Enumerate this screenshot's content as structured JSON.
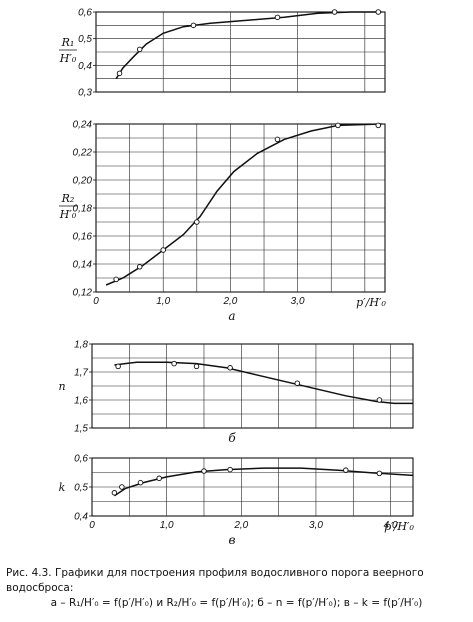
{
  "caption": {
    "line1": "Рис. 4.3. Графики для построения профиля водосливного порога веерного водосброса:",
    "line2": "а – R₁/H′₀ = f(p′/H′₀) и R₂/H′₀ = f(p′/H′₀); б – n = f(p′/H′₀); в – k = f(p′/H′₀)"
  },
  "chart_data": [
    {
      "type": "line",
      "ylabel_num": "R₁",
      "ylabel_den": "H′₀",
      "xlim": [
        0,
        4.3
      ],
      "ylim": [
        0.3,
        0.6
      ],
      "yticks": [
        0.3,
        0.4,
        0.5,
        0.6
      ],
      "ytick_labels": [
        "0,3",
        "0,4",
        "0,5",
        "0,6"
      ],
      "grid": true,
      "points": [
        [
          0.35,
          0.37
        ],
        [
          0.65,
          0.46
        ],
        [
          1.45,
          0.55
        ],
        [
          2.7,
          0.58
        ],
        [
          3.55,
          0.6
        ],
        [
          4.2,
          0.6
        ]
      ],
      "curve": [
        [
          0.3,
          0.35
        ],
        [
          0.4,
          0.39
        ],
        [
          0.55,
          0.43
        ],
        [
          0.75,
          0.48
        ],
        [
          1.0,
          0.52
        ],
        [
          1.3,
          0.545
        ],
        [
          1.7,
          0.558
        ],
        [
          2.3,
          0.57
        ],
        [
          2.8,
          0.58
        ],
        [
          3.3,
          0.595
        ],
        [
          3.8,
          0.6
        ],
        [
          4.25,
          0.6
        ]
      ]
    },
    {
      "type": "line",
      "ylabel_num": "R₂",
      "ylabel_den": "H′₀",
      "xlabel": "p′/H′₀",
      "sublabel": "а",
      "xlim": [
        0,
        4.3
      ],
      "ylim": [
        0.12,
        0.24
      ],
      "yticks": [
        0.12,
        0.14,
        0.16,
        0.18,
        0.2,
        0.22,
        0.24
      ],
      "ytick_labels": [
        "0,12",
        "0,14",
        "0,16",
        "0,18",
        "0,20",
        "0,22",
        "0,24"
      ],
      "xticks": [
        0,
        1,
        2,
        3
      ],
      "xtick_labels": [
        "0",
        "1,0",
        "2,0",
        "3,0"
      ],
      "grid": true,
      "points": [
        [
          0.3,
          0.129
        ],
        [
          0.65,
          0.138
        ],
        [
          1.0,
          0.15
        ],
        [
          1.5,
          0.17
        ],
        [
          2.7,
          0.229
        ],
        [
          3.6,
          0.239
        ],
        [
          4.2,
          0.239
        ]
      ],
      "curve": [
        [
          0.15,
          0.125
        ],
        [
          0.4,
          0.13
        ],
        [
          0.7,
          0.139
        ],
        [
          1.0,
          0.15
        ],
        [
          1.3,
          0.161
        ],
        [
          1.55,
          0.174
        ],
        [
          1.8,
          0.192
        ],
        [
          2.05,
          0.206
        ],
        [
          2.4,
          0.219
        ],
        [
          2.8,
          0.229
        ],
        [
          3.2,
          0.235
        ],
        [
          3.6,
          0.239
        ],
        [
          4.25,
          0.24
        ]
      ]
    },
    {
      "type": "line",
      "ylabel": "n",
      "sublabel": "б",
      "xlim": [
        0,
        4.3
      ],
      "ylim": [
        1.5,
        1.8
      ],
      "yticks": [
        1.5,
        1.6,
        1.7,
        1.8
      ],
      "ytick_labels": [
        "1,5",
        "1,6",
        "1,7",
        "1,8"
      ],
      "grid": true,
      "points": [
        [
          0.35,
          1.72
        ],
        [
          1.1,
          1.73
        ],
        [
          1.4,
          1.72
        ],
        [
          1.85,
          1.715
        ],
        [
          2.75,
          1.66
        ],
        [
          3.85,
          1.6
        ]
      ],
      "curve": [
        [
          0.3,
          1.725
        ],
        [
          0.6,
          1.735
        ],
        [
          1.0,
          1.735
        ],
        [
          1.4,
          1.73
        ],
        [
          1.8,
          1.715
        ],
        [
          2.2,
          1.69
        ],
        [
          2.6,
          1.665
        ],
        [
          3.0,
          1.64
        ],
        [
          3.4,
          1.615
        ],
        [
          3.8,
          1.595
        ],
        [
          4.05,
          1.588
        ],
        [
          4.3,
          1.588
        ]
      ]
    },
    {
      "type": "line",
      "ylabel": "k",
      "xlabel": "p′/H′₀",
      "sublabel": "в",
      "xlim": [
        0,
        4.3
      ],
      "ylim": [
        0.4,
        0.6
      ],
      "yticks": [
        0.4,
        0.5,
        0.6
      ],
      "ytick_labels": [
        "0,4",
        "0,5",
        "0,6"
      ],
      "xticks": [
        0,
        1,
        2,
        3,
        4
      ],
      "xtick_labels": [
        "0",
        "1,0",
        "2,0",
        "3,0",
        "4,0"
      ],
      "grid": true,
      "points": [
        [
          0.3,
          0.48
        ],
        [
          0.4,
          0.5
        ],
        [
          0.65,
          0.515
        ],
        [
          0.9,
          0.53
        ],
        [
          1.5,
          0.555
        ],
        [
          1.85,
          0.56
        ],
        [
          3.4,
          0.558
        ],
        [
          3.85,
          0.547
        ]
      ],
      "curve": [
        [
          0.3,
          0.47
        ],
        [
          0.45,
          0.495
        ],
        [
          0.7,
          0.516
        ],
        [
          1.0,
          0.535
        ],
        [
          1.4,
          0.552
        ],
        [
          1.8,
          0.56
        ],
        [
          2.3,
          0.565
        ],
        [
          2.8,
          0.565
        ],
        [
          3.3,
          0.558
        ],
        [
          3.8,
          0.548
        ],
        [
          4.3,
          0.54
        ]
      ]
    }
  ]
}
